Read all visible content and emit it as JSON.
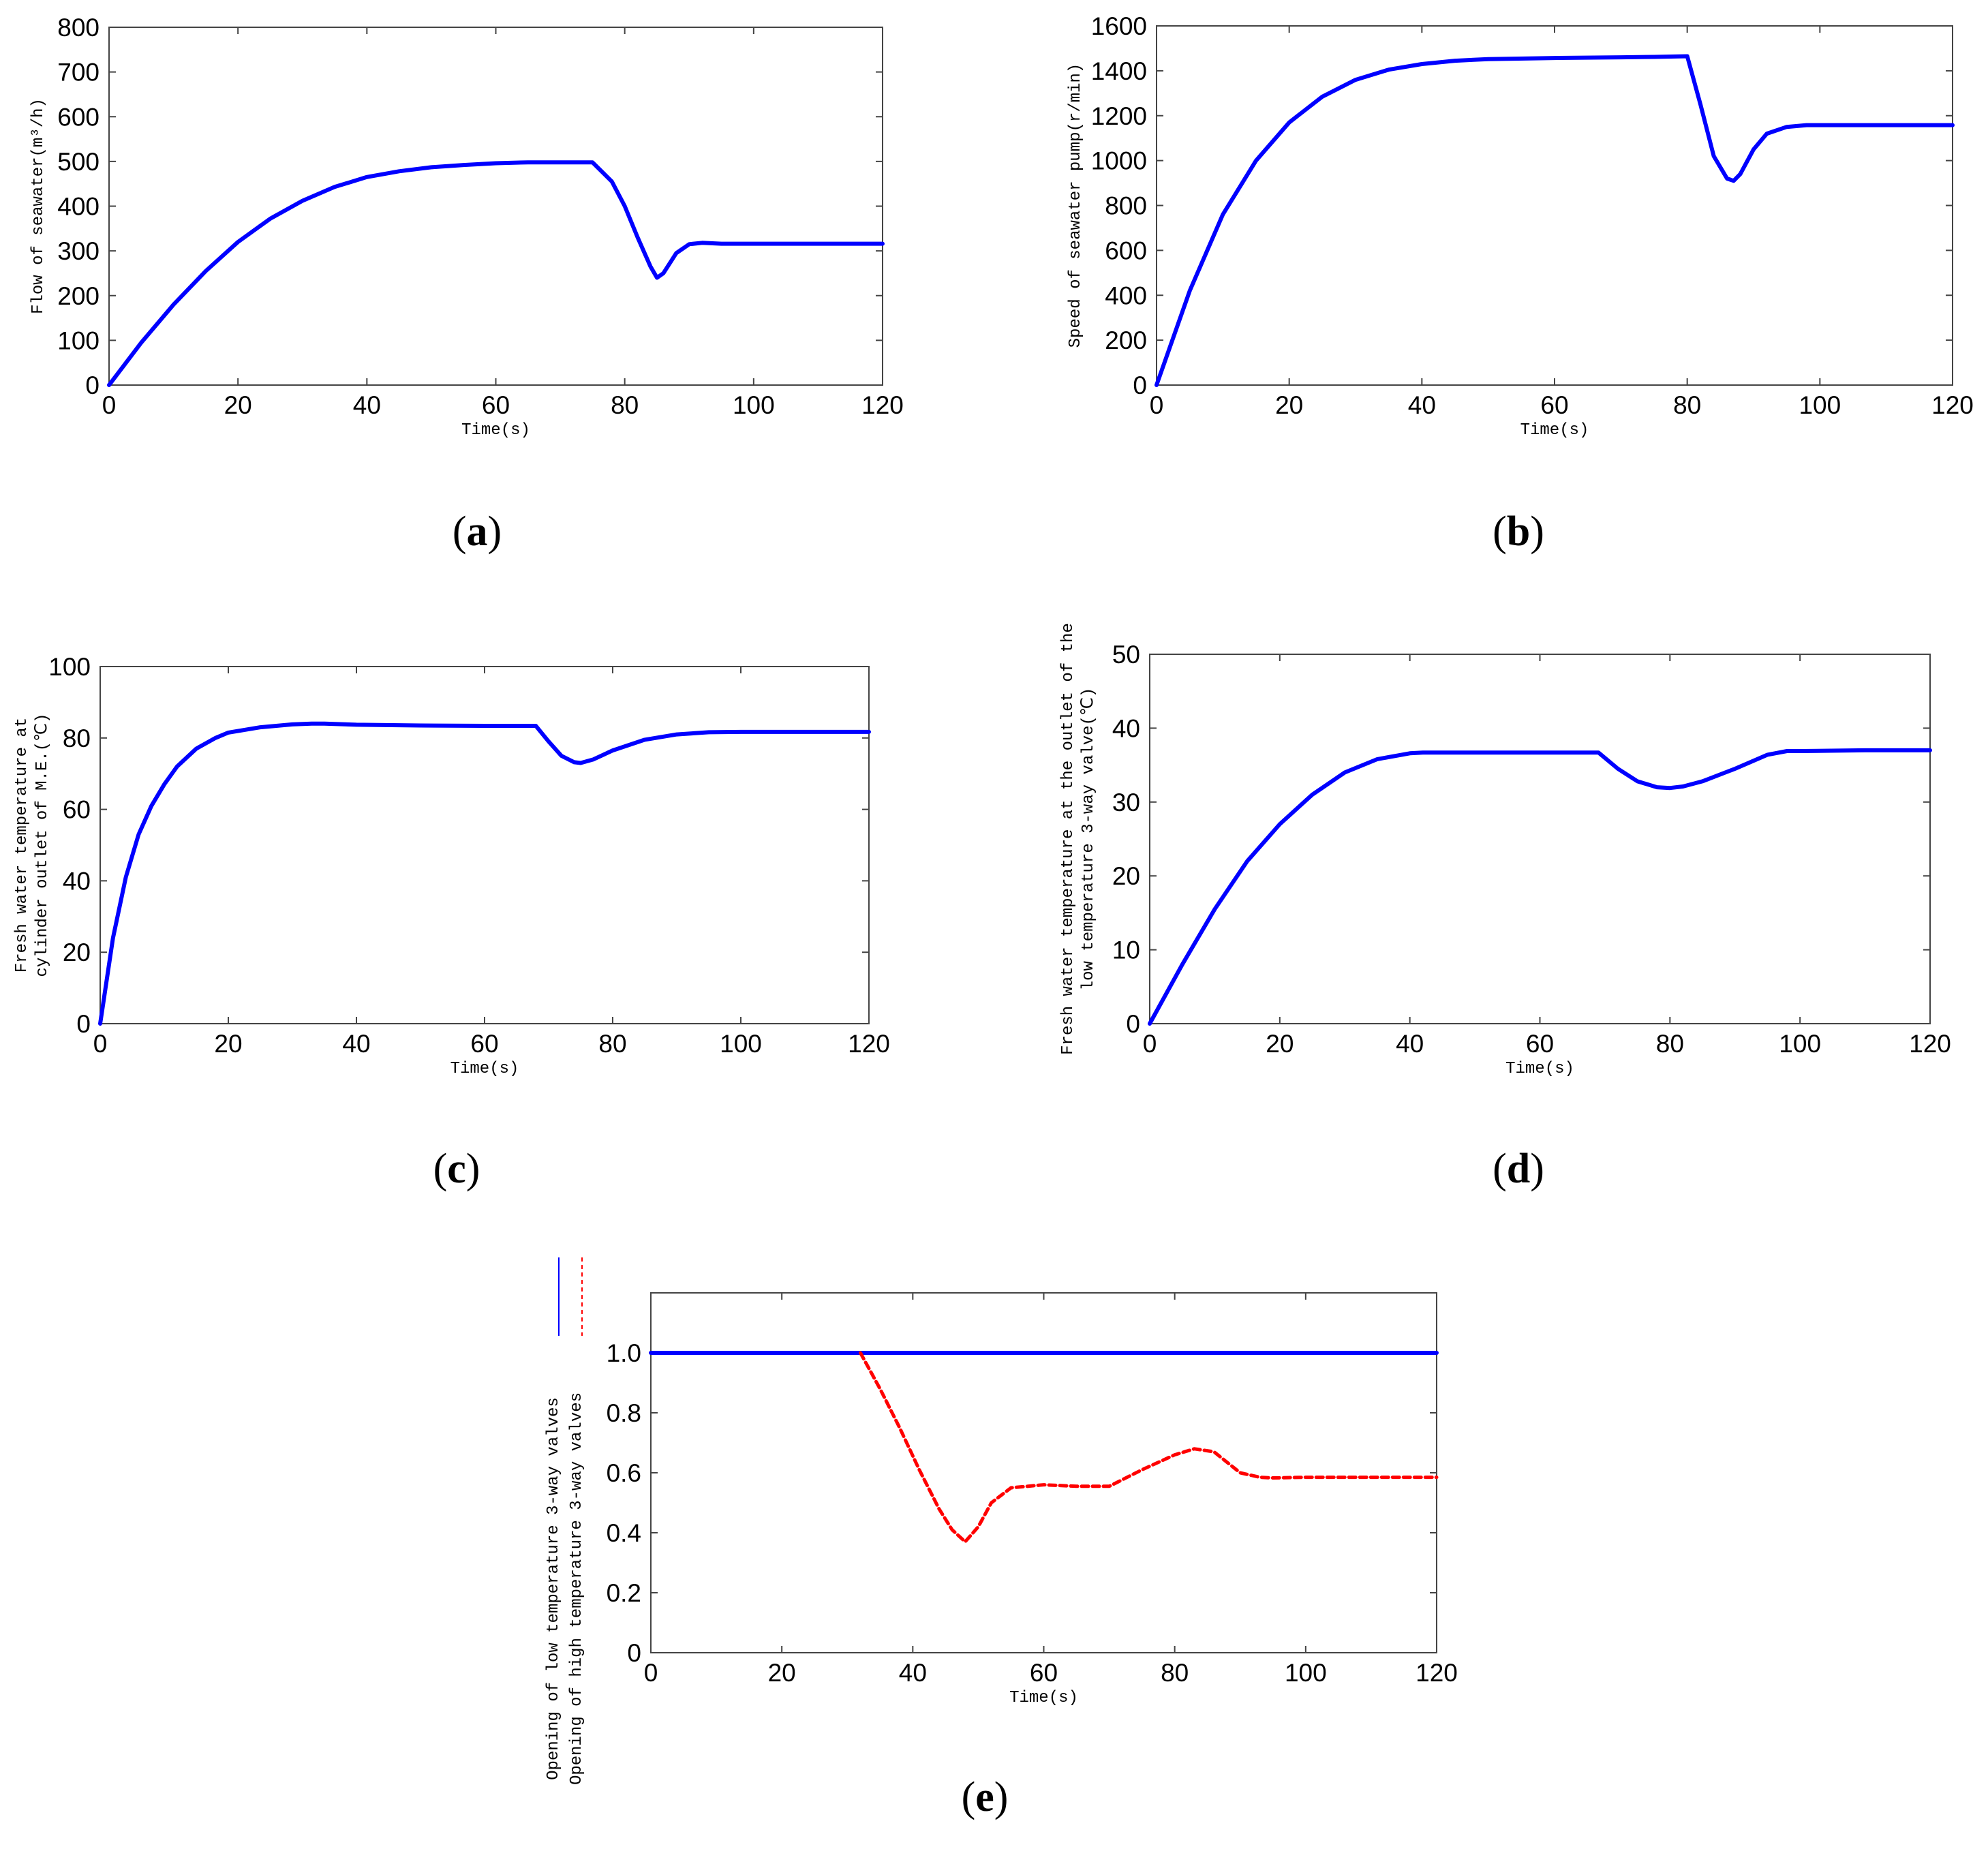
{
  "chart_data": [
    {
      "id": "a",
      "type": "line",
      "panel_label": "(a)",
      "panel_letter": "a",
      "xlabel": "Time(s)",
      "ylabel": "Flow of seawater(m³/h)",
      "xlim": [
        0,
        120
      ],
      "ylim": [
        0,
        800
      ],
      "xticks": [
        0,
        20,
        40,
        60,
        80,
        100,
        120
      ],
      "yticks": [
        0,
        100,
        200,
        300,
        400,
        500,
        600,
        700,
        800
      ],
      "series": [
        {
          "name": "Flow of seawater",
          "color": "#0000ff",
          "dash": "solid",
          "x": [
            0,
            5,
            10,
            15,
            20,
            25,
            30,
            35,
            40,
            45,
            50,
            55,
            60,
            65,
            70,
            75,
            78,
            80,
            82,
            84,
            85,
            86,
            88,
            90,
            92,
            95,
            100,
            110,
            120
          ],
          "y": [
            0,
            95,
            180,
            255,
            320,
            372,
            412,
            443,
            465,
            478,
            487,
            492,
            496,
            498,
            498,
            498,
            455,
            400,
            330,
            265,
            240,
            250,
            295,
            315,
            318,
            316,
            316,
            316,
            316
          ]
        }
      ]
    },
    {
      "id": "b",
      "type": "line",
      "panel_label": "(b)",
      "panel_letter": "b",
      "xlabel": "Time(s)",
      "ylabel": "Speed of seawater pump(r/min)",
      "xlim": [
        0,
        120
      ],
      "ylim": [
        0,
        1600
      ],
      "xticks": [
        0,
        20,
        40,
        60,
        80,
        100,
        120
      ],
      "yticks": [
        0,
        200,
        400,
        600,
        800,
        1000,
        1200,
        1400,
        1600
      ],
      "series": [
        {
          "name": "Speed of seawater pump",
          "color": "#0000ff",
          "dash": "solid",
          "x": [
            0,
            5,
            10,
            15,
            20,
            25,
            30,
            35,
            40,
            45,
            50,
            60,
            70,
            75,
            80,
            82,
            84,
            86,
            87,
            88,
            90,
            92,
            95,
            98,
            100,
            110,
            120
          ],
          "y": [
            0,
            420,
            760,
            1000,
            1170,
            1285,
            1360,
            1405,
            1430,
            1445,
            1452,
            1457,
            1460,
            1462,
            1465,
            1250,
            1020,
            920,
            910,
            940,
            1050,
            1120,
            1150,
            1158,
            1158,
            1158,
            1158
          ]
        }
      ]
    },
    {
      "id": "c",
      "type": "line",
      "panel_label": "(c)",
      "panel_letter": "c",
      "xlabel": "Time(s)",
      "ylabel_lines": [
        "Fresh water temperature at",
        "cylinder outlet of M.E.(℃)"
      ],
      "xlim": [
        0,
        120
      ],
      "ylim": [
        0,
        100
      ],
      "xticks": [
        0,
        20,
        40,
        60,
        80,
        100,
        120
      ],
      "yticks": [
        0,
        20,
        40,
        60,
        80,
        100
      ],
      "series": [
        {
          "name": "Fresh water temperature at cylinder outlet of M.E.",
          "color": "#0000ff",
          "dash": "solid",
          "x": [
            0,
            2,
            4,
            6,
            8,
            10,
            12,
            15,
            18,
            20,
            25,
            30,
            33,
            35,
            40,
            50,
            60,
            67,
            68,
            70,
            72,
            74,
            75,
            77,
            80,
            85,
            90,
            95,
            100,
            110,
            120
          ],
          "y": [
            0,
            24,
            41,
            53,
            61,
            67,
            72,
            77,
            80,
            81.5,
            83,
            83.8,
            84,
            84,
            83.7,
            83.5,
            83.4,
            83.4,
            83.4,
            79,
            75,
            73.2,
            73,
            74,
            76.5,
            79.5,
            81,
            81.6,
            81.7,
            81.7,
            81.7
          ]
        }
      ]
    },
    {
      "id": "d",
      "type": "line",
      "panel_label": "(d)",
      "panel_letter": "d",
      "xlabel": "Time(s)",
      "ylabel_lines": [
        "Fresh water temperature at the outlet of the",
        "low temperature 3-way valve(℃)"
      ],
      "xlim": [
        0,
        120
      ],
      "ylim": [
        0,
        50
      ],
      "xticks": [
        0,
        20,
        40,
        60,
        80,
        100,
        120
      ],
      "yticks": [
        0,
        10,
        20,
        30,
        40,
        50
      ],
      "series": [
        {
          "name": "Fresh water temperature at the outlet of the low temperature 3-way valve",
          "color": "#0000ff",
          "dash": "solid",
          "x": [
            0,
            5,
            10,
            15,
            20,
            25,
            30,
            35,
            40,
            42,
            50,
            60,
            69,
            72,
            75,
            78,
            80,
            82,
            85,
            90,
            95,
            98,
            100,
            110,
            120
          ],
          "y": [
            0,
            8,
            15.5,
            22,
            27,
            31,
            34,
            35.8,
            36.6,
            36.7,
            36.7,
            36.7,
            36.7,
            34.5,
            32.8,
            32,
            31.9,
            32.1,
            32.8,
            34.5,
            36.4,
            36.9,
            36.9,
            37,
            37
          ]
        }
      ]
    },
    {
      "id": "e",
      "type": "line",
      "panel_label": "(e)",
      "panel_letter": "e",
      "xlabel": "Time(s)",
      "ylabel_lines": [
        "Opening of low temperature 3-way valves",
        "Opening of high temperature 3-way valves"
      ],
      "legend_placement": "left",
      "xlim": [
        0,
        120
      ],
      "ylim": [
        0,
        1.2
      ],
      "xticks": [
        0,
        20,
        40,
        60,
        80,
        100,
        120
      ],
      "yticks": [
        0,
        0.2,
        0.4,
        0.6,
        0.8,
        1.0
      ],
      "ytick_labels": [
        "0",
        "0.2",
        "0.4",
        "0.6",
        "0.8",
        "1.0"
      ],
      "series": [
        {
          "name": "Opening of low temperature 3-way valves",
          "color": "#0000ff",
          "dash": "solid",
          "x": [
            0,
            120
          ],
          "y": [
            1.0,
            1.0
          ]
        },
        {
          "name": "Opening of high temperature 3-way valves",
          "color": "#ff0000",
          "dash": "dashed",
          "x": [
            32,
            35,
            38,
            41,
            44,
            46,
            48,
            50,
            52,
            55,
            60,
            65,
            70,
            75,
            80,
            83,
            86,
            90,
            93,
            95,
            100,
            110,
            120
          ],
          "y": [
            1.0,
            0.88,
            0.75,
            0.61,
            0.48,
            0.41,
            0.37,
            0.42,
            0.5,
            0.55,
            0.56,
            0.555,
            0.555,
            0.61,
            0.66,
            0.68,
            0.67,
            0.6,
            0.585,
            0.583,
            0.585,
            0.585,
            0.585
          ]
        }
      ]
    }
  ]
}
